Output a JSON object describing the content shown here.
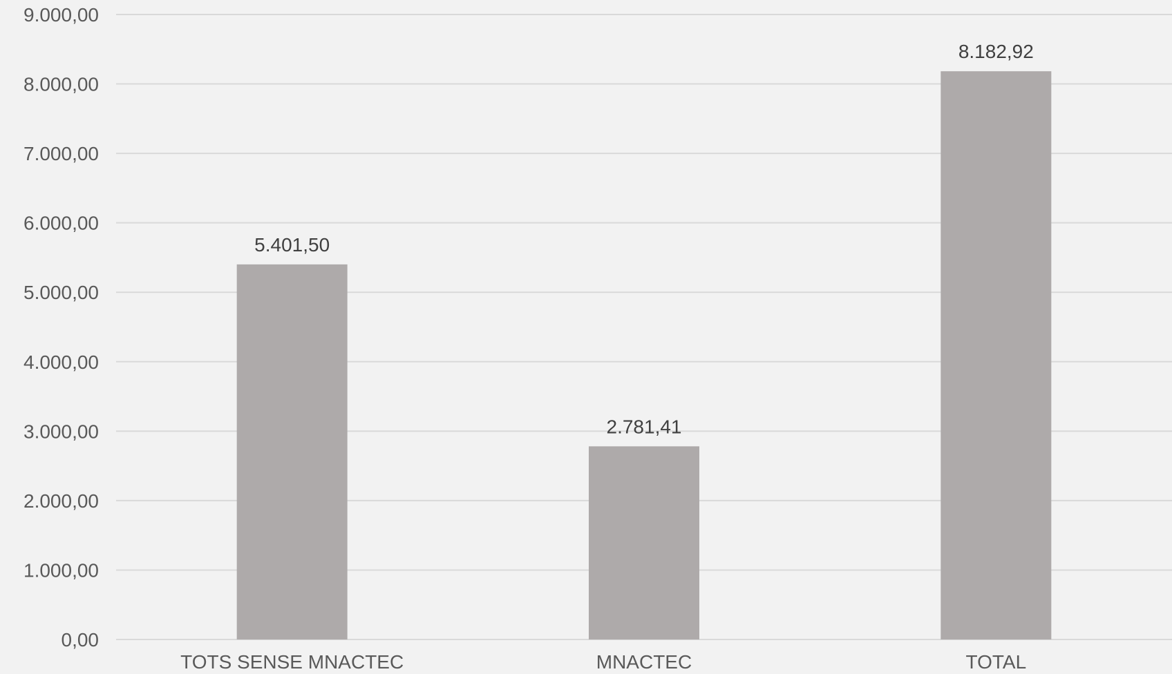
{
  "chart_data": {
    "type": "bar",
    "title": "",
    "xlabel": "",
    "ylabel": "",
    "categories": [
      "TOTS SENSE MNACTEC",
      "MNACTEC",
      "TOTAL"
    ],
    "values": [
      5401.5,
      2781.41,
      8182.92
    ],
    "data_labels": [
      "5.401,50",
      "2.781,41",
      "8.182,92"
    ],
    "ylim": [
      0,
      9000
    ],
    "yticks": [
      0,
      1000,
      2000,
      3000,
      4000,
      5000,
      6000,
      7000,
      8000,
      9000
    ],
    "ytick_labels": [
      "0,00",
      "1.000,00",
      "2.000,00",
      "3.000,00",
      "4.000,00",
      "5.000,00",
      "6.000,00",
      "7.000,00",
      "8.000,00",
      "9.000,00"
    ],
    "grid": true,
    "legend": "none",
    "colors": {
      "bar": "#aeaaaa",
      "grid": "#d9d9d9",
      "background": "#f2f2f2",
      "axis_text": "#595959",
      "label_text": "#404040"
    }
  }
}
